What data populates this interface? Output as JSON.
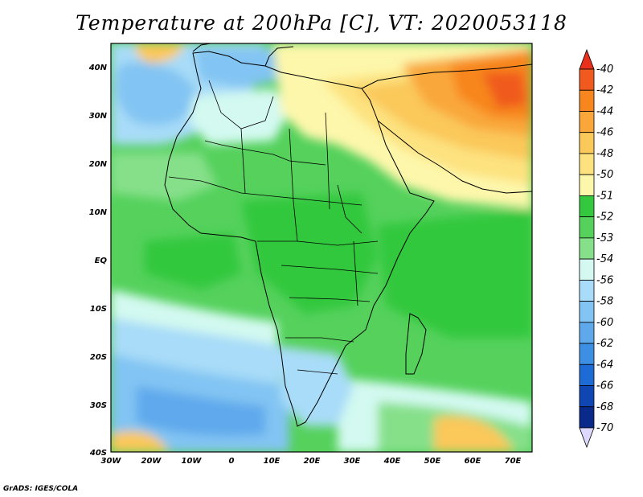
{
  "title": "Temperature at 200hPa [C], VT: 2020053118",
  "credit": "GrADS: IGES/COLA",
  "map": {
    "lat_ticks": [
      "40N",
      "30N",
      "20N",
      "10N",
      "EQ",
      "10S",
      "20S",
      "30S",
      "40S"
    ],
    "lon_ticks": [
      "30W",
      "20W",
      "10W",
      "0",
      "10E",
      "20E",
      "30E",
      "40E",
      "50E",
      "60E",
      "70E"
    ]
  },
  "colorbar": {
    "levels": [
      "-40",
      "-42",
      "-44",
      "-46",
      "-48",
      "-50",
      "-51",
      "-52",
      "-53",
      "-54",
      "-56",
      "-58",
      "-60",
      "-62",
      "-64",
      "-66",
      "-68",
      "-70"
    ],
    "colors": [
      "#e8301c",
      "#f05a1e",
      "#f7861f",
      "#f9a73a",
      "#fbc85a",
      "#fde27f",
      "#fdf7ab",
      "#33c83d",
      "#55d15c",
      "#86e08a",
      "#d3f9f0",
      "#a8dcf8",
      "#82c4f3",
      "#5ea9ec",
      "#3d8fe3",
      "#1f6bd6",
      "#0f46b4",
      "#0a2a8a",
      "#080e60"
    ],
    "low_arrow_color": "#dcd8ff"
  }
}
